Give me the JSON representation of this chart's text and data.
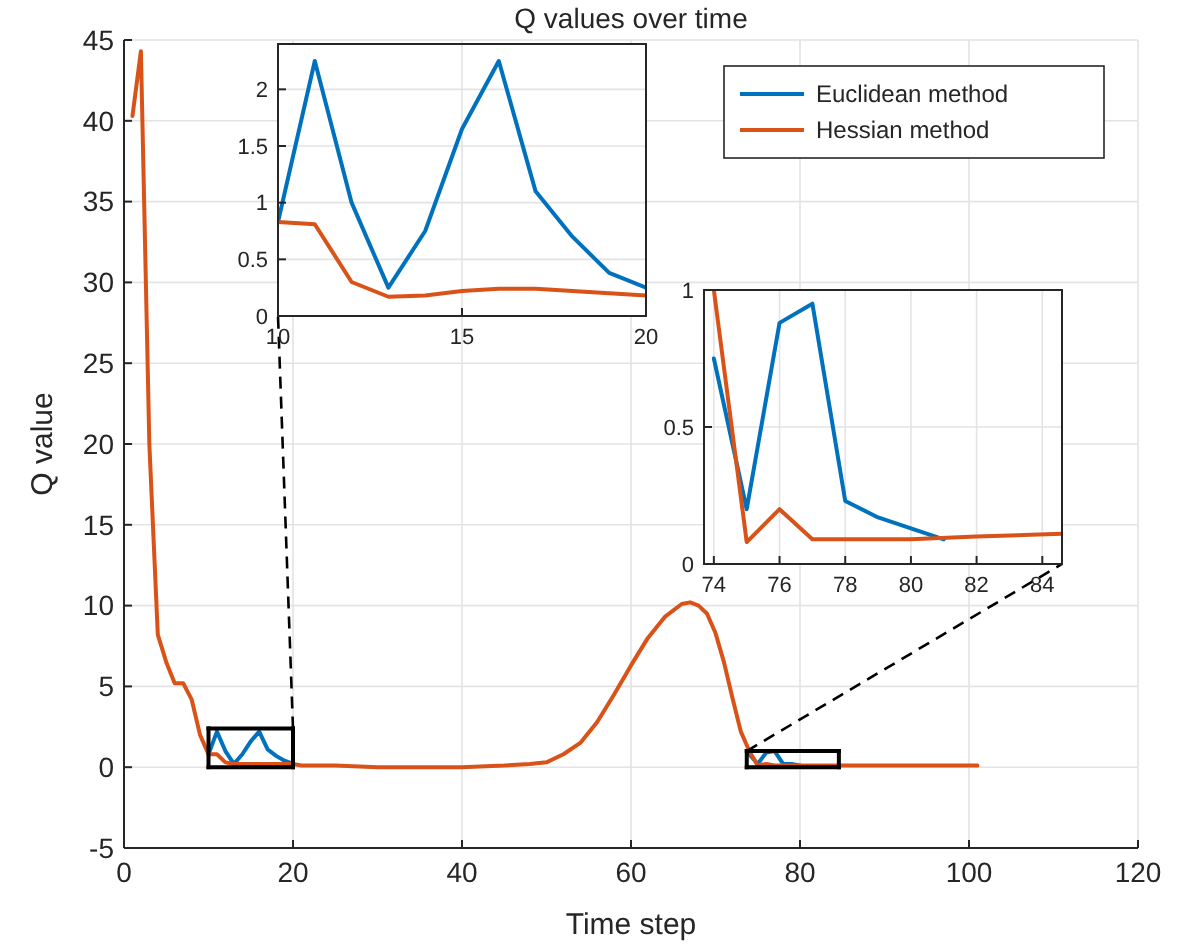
{
  "chart_data": [
    {
      "type": "line",
      "title": "Q values over time",
      "xlabel": "Time step",
      "ylabel": "Q value",
      "xlim": [
        0,
        120
      ],
      "xticks": [
        0,
        20,
        40,
        60,
        80,
        100,
        120
      ],
      "ylim": [
        -5,
        45
      ],
      "yticks": [
        -5,
        0,
        5,
        10,
        15,
        20,
        25,
        30,
        35,
        40,
        45
      ],
      "grid": true,
      "legend": "top right",
      "line_style": "solid",
      "series": [
        {
          "name": "Euclidean method",
          "color": "#0072bd",
          "x": [
            10,
            11,
            12,
            13,
            14,
            15,
            16,
            17,
            18,
            19,
            20,
            21,
            74,
            75,
            76,
            77,
            78,
            79,
            80
          ],
          "values": [
            0.8,
            2.2,
            1.0,
            0.2,
            0.8,
            1.6,
            2.2,
            1.1,
            0.7,
            0.4,
            0.2,
            null,
            0.8,
            0.2,
            0.9,
            1.0,
            0.2,
            0.2,
            0.1
          ]
        },
        {
          "name": "Hessian method",
          "color": "#d95319",
          "x": [
            1,
            2,
            3,
            4,
            5,
            6,
            7,
            8,
            9,
            10,
            11,
            12,
            13,
            14,
            15,
            16,
            17,
            18,
            19,
            20,
            21,
            25,
            30,
            35,
            40,
            45,
            48,
            50,
            52,
            54,
            56,
            58,
            60,
            62,
            64,
            66,
            67,
            68,
            69,
            70,
            71,
            72,
            73,
            74,
            75,
            76,
            77,
            78,
            80,
            82,
            85,
            90,
            95,
            101
          ],
          "values": [
            40.3,
            44.3,
            20,
            8.2,
            6.5,
            5.2,
            5.2,
            4.2,
            2.0,
            0.8,
            0.8,
            0.3,
            0.2,
            0.2,
            0.2,
            0.2,
            0.2,
            0.2,
            0.2,
            0.2,
            0.1,
            0.1,
            0.0,
            0.0,
            0.0,
            0.1,
            0.2,
            0.3,
            0.8,
            1.5,
            2.8,
            4.5,
            6.3,
            8.0,
            9.3,
            10.1,
            10.2,
            10.0,
            9.5,
            8.3,
            6.5,
            4.3,
            2.2,
            1.0,
            0.1,
            0.2,
            0.1,
            0.1,
            0.1,
            0.1,
            0.1,
            0.1,
            0.1,
            0.1
          ]
        }
      ]
    },
    {
      "type": "line",
      "xlim": [
        10,
        20
      ],
      "xticks": [
        10,
        15,
        20
      ],
      "ylim": [
        0,
        2.4
      ],
      "yticks": [
        0,
        0.5,
        1,
        1.5,
        2
      ],
      "grid": true,
      "line_style": "solid",
      "series": [
        {
          "color": "#0072bd",
          "x": [
            10,
            11,
            12,
            13,
            14,
            15,
            16,
            17,
            18,
            19,
            20
          ],
          "values": [
            0.83,
            2.25,
            1.0,
            0.25,
            0.75,
            1.65,
            2.25,
            1.1,
            0.7,
            0.38,
            0.25
          ]
        },
        {
          "color": "#d95319",
          "x": [
            10,
            11,
            12,
            13,
            14,
            15,
            16,
            17,
            18,
            19,
            20
          ],
          "values": [
            0.83,
            0.81,
            0.3,
            0.17,
            0.18,
            0.22,
            0.24,
            0.24,
            0.22,
            0.2,
            0.18
          ]
        }
      ]
    },
    {
      "type": "line",
      "xlim": [
        73.7,
        84.6
      ],
      "xticks": [
        74,
        76,
        78,
        80,
        82,
        84
      ],
      "ylim": [
        0,
        1
      ],
      "yticks": [
        0,
        0.5,
        1
      ],
      "grid": true,
      "line_style": "solid",
      "series": [
        {
          "color": "#0072bd",
          "x": [
            74,
            75,
            76,
            77,
            78,
            79,
            80,
            81
          ],
          "values": [
            0.75,
            0.2,
            0.88,
            0.95,
            0.23,
            0.17,
            0.13,
            0.09
          ]
        },
        {
          "color": "#d95319",
          "x": [
            74,
            75,
            76,
            77,
            78,
            80,
            82,
            84.6
          ],
          "values": [
            1.0,
            0.08,
            0.2,
            0.09,
            0.09,
            0.09,
            0.1,
            0.11
          ]
        }
      ]
    }
  ]
}
